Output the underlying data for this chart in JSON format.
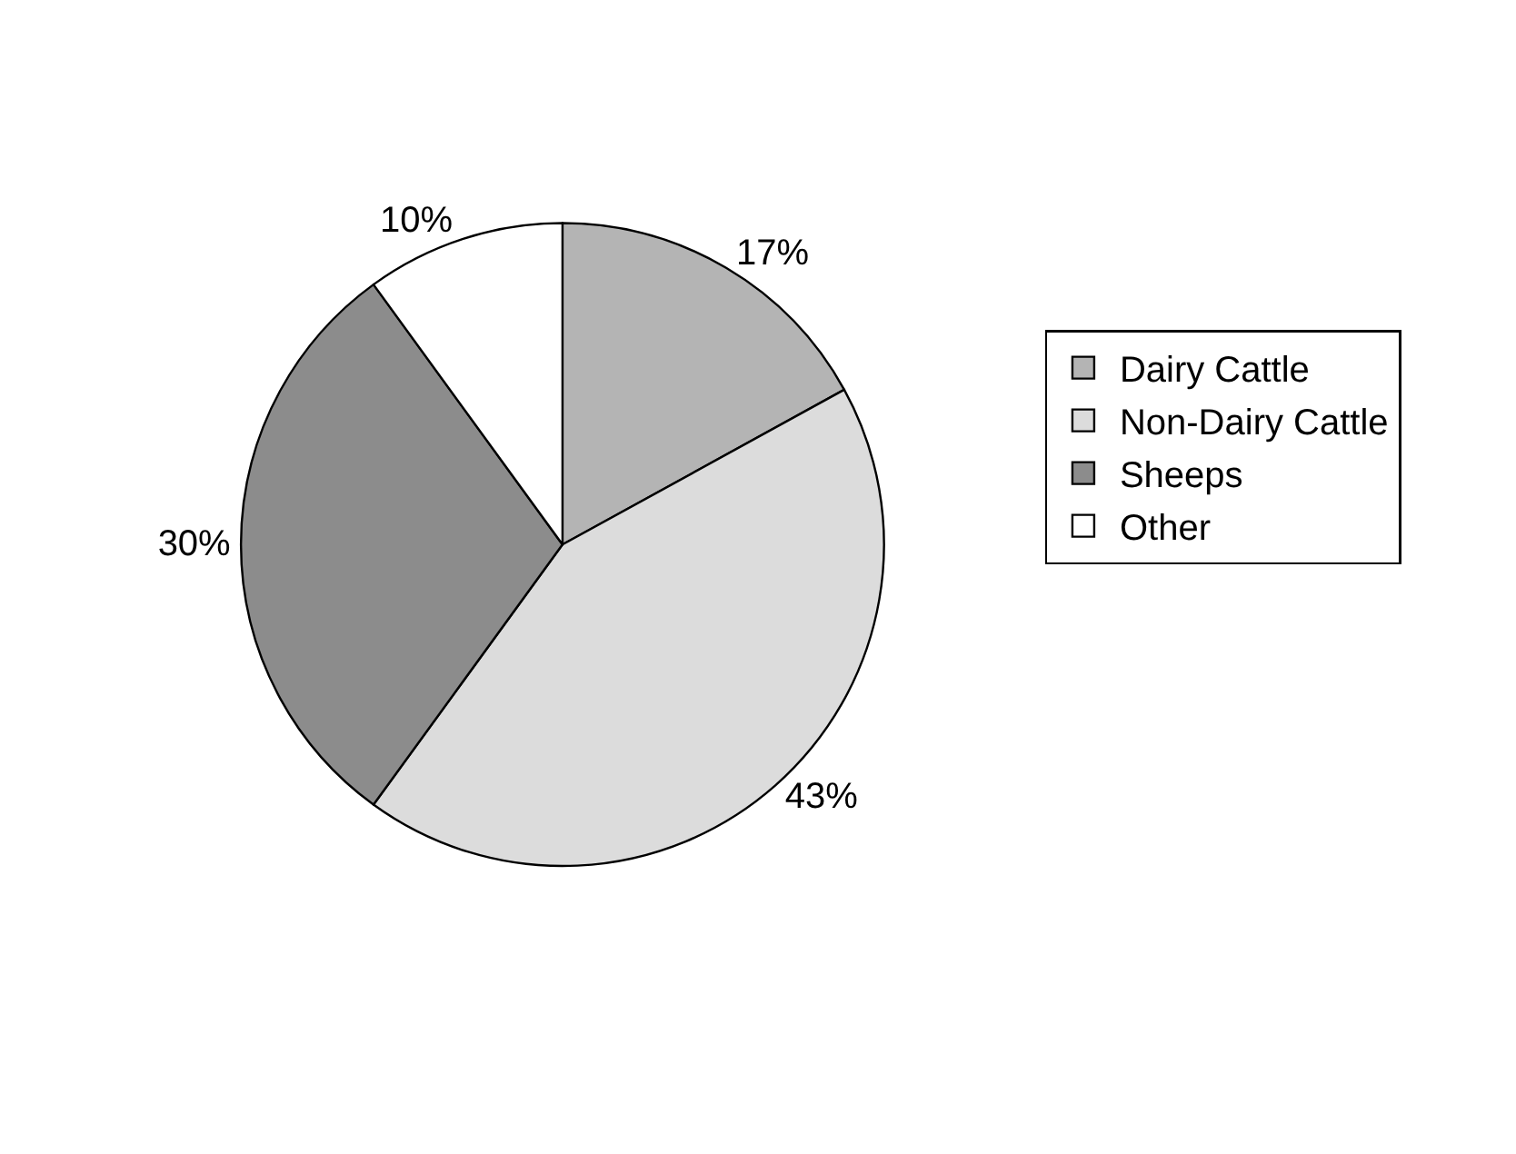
{
  "chart_data": {
    "type": "pie",
    "categories": [
      "Dairy Cattle",
      "Non-Dairy Cattle",
      "Sheeps",
      "Other"
    ],
    "values": [
      17,
      43,
      30,
      10
    ],
    "value_labels": [
      "17%",
      "43%",
      "30%",
      "10%"
    ],
    "colors": [
      "#b4b4b4",
      "#dcdcdc",
      "#8c8c8c",
      "#ffffff"
    ],
    "legend": "right"
  }
}
